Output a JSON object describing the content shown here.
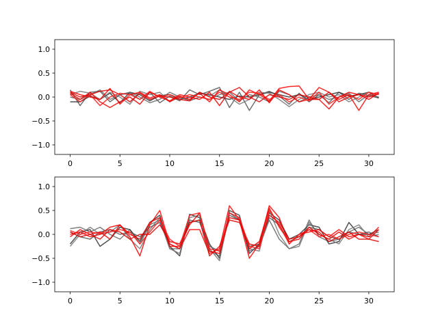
{
  "chart_data": [
    {
      "type": "line",
      "title": "",
      "xlabel": "",
      "ylabel": "",
      "xlim": [
        -1.55,
        32.55
      ],
      "ylim": [
        -1.2,
        1.2
      ],
      "xticks": [
        0,
        5,
        10,
        15,
        20,
        25,
        30
      ],
      "yticks": [
        -1.0,
        -0.5,
        0.0,
        0.5,
        1.0
      ],
      "xtick_labels": [
        "0",
        "5",
        "10",
        "15",
        "20",
        "25",
        "30"
      ],
      "ytick_labels": [
        "−1.0",
        "−0.5",
        "0.0",
        "0.5",
        "1.0"
      ],
      "grid": false,
      "x": [
        0,
        1,
        2,
        3,
        4,
        5,
        6,
        7,
        8,
        9,
        10,
        11,
        12,
        13,
        14,
        15,
        16,
        17,
        18,
        19,
        20,
        21,
        22,
        23,
        24,
        25,
        26,
        27,
        28,
        29,
        30,
        31
      ],
      "series": [
        {
          "color": "#555555",
          "values": [
            0.15,
            -0.18,
            0.1,
            0.12,
            -0.1,
            0.05,
            0.08,
            -0.05,
            0.1,
            -0.12,
            0.02,
            -0.08,
            0.15,
            0.05,
            0.12,
            0.2,
            -0.22,
            0.1,
            -0.28,
            0.05,
            0.12,
            0.02,
            -0.15,
            0.08,
            -0.1,
            0.05,
            -0.12,
            0.1,
            -0.05,
            0.08,
            0.03,
            -0.02
          ]
        },
        {
          "color": "#333333",
          "values": [
            -0.1,
            -0.1,
            0.02,
            -0.05,
            0.08,
            -0.12,
            0.1,
            0.05,
            -0.08,
            0.03,
            0.05,
            -0.05,
            0.0,
            0.08,
            0.05,
            0.0,
            -0.05,
            0.02,
            0.0,
            0.05,
            0.1,
            0.05,
            0.0,
            0.05,
            -0.05,
            0.0,
            0.05,
            0.1,
            0.02,
            0.05,
            0.1,
            -0.02
          ]
        },
        {
          "color": "#777777",
          "values": [
            0.05,
            0.12,
            0.08,
            -0.05,
            0.1,
            0.0,
            -0.15,
            0.12,
            0.05,
            0.1,
            -0.1,
            0.0,
            -0.05,
            0.1,
            0.02,
            0.15,
            0.0,
            -0.15,
            -0.05,
            0.1,
            0.08,
            -0.05,
            -0.2,
            -0.05,
            0.05,
            0.1,
            0.0,
            0.05,
            -0.1,
            0.0,
            0.1,
            0.05
          ]
        },
        {
          "color": "#666666",
          "values": [
            0.0,
            -0.05,
            0.05,
            0.15,
            -0.05,
            0.05,
            0.1,
            0.0,
            -0.12,
            -0.05,
            0.1,
            0.0,
            -0.08,
            0.0,
            -0.05,
            0.05,
            0.1,
            -0.08,
            0.05,
            0.0,
            -0.1,
            0.12,
            0.05,
            -0.1,
            0.0,
            0.05,
            -0.05,
            0.0,
            0.08,
            -0.1,
            0.05,
            0.0
          ]
        },
        {
          "color": "#ff0000",
          "values": [
            0.12,
            0.05,
            0.0,
            -0.05,
            0.18,
            -0.15,
            0.05,
            0.1,
            -0.02,
            0.05,
            -0.1,
            0.02,
            -0.05,
            0.08,
            -0.1,
            0.15,
            0.05,
            -0.1,
            0.15,
            0.05,
            -0.08,
            0.18,
            0.22,
            0.23,
            -0.05,
            0.2,
            0.1,
            -0.05,
            0.05,
            -0.28,
            0.05,
            0.1
          ]
        },
        {
          "color": "#ee0000",
          "values": [
            0.08,
            -0.05,
            0.1,
            -0.1,
            -0.22,
            -0.1,
            0.0,
            -0.15,
            0.1,
            0.0,
            -0.08,
            0.05,
            0.0,
            -0.05,
            0.1,
            -0.18,
            0.12,
            0.0,
            -0.05,
            0.15,
            -0.12,
            0.15,
            0.05,
            -0.1,
            -0.05,
            -0.05,
            -0.25,
            0.0,
            0.1,
            0.05,
            0.0,
            0.08
          ]
        },
        {
          "color": "#dd0000",
          "values": [
            0.1,
            0.0,
            0.05,
            0.12,
            0.15,
            0.05,
            -0.1,
            0.08,
            -0.05,
            0.02,
            0.0,
            -0.05,
            -0.08,
            0.1,
            0.0,
            -0.05,
            0.1,
            0.2,
            0.0,
            -0.1,
            0.05,
            0.0,
            -0.05,
            0.05,
            0.0,
            -0.05,
            0.1,
            -0.1,
            0.0,
            0.05,
            -0.05,
            0.08
          ]
        },
        {
          "color": "#ff1a1a",
          "values": [
            0.05,
            -0.1,
            0.05,
            -0.18,
            0.0,
            0.08,
            0.05,
            -0.05,
            0.12,
            0.0,
            0.05,
            -0.02,
            0.05,
            0.0,
            -0.05,
            0.1,
            0.0,
            -0.05,
            0.1,
            0.08,
            -0.05,
            0.05,
            -0.1,
            0.0,
            -0.08,
            0.1,
            -0.15,
            0.0,
            0.05,
            -0.05,
            0.1,
            0.05
          ]
        }
      ]
    },
    {
      "type": "line",
      "title": "",
      "xlabel": "",
      "ylabel": "",
      "xlim": [
        -1.55,
        32.55
      ],
      "ylim": [
        -1.2,
        1.2
      ],
      "xticks": [
        0,
        5,
        10,
        15,
        20,
        25,
        30
      ],
      "yticks": [
        -1.0,
        -0.5,
        0.0,
        0.5,
        1.0
      ],
      "xtick_labels": [
        "0",
        "5",
        "10",
        "15",
        "20",
        "25",
        "30"
      ],
      "ytick_labels": [
        "−1.0",
        "−0.5",
        "0.0",
        "0.5",
        "1.0"
      ],
      "grid": false,
      "x": [
        0,
        1,
        2,
        3,
        4,
        5,
        6,
        7,
        8,
        9,
        10,
        11,
        12,
        13,
        14,
        15,
        16,
        17,
        18,
        19,
        20,
        21,
        22,
        23,
        24,
        25,
        26,
        27,
        28,
        29,
        30,
        31
      ],
      "series": [
        {
          "color": "#666666",
          "values": [
            0.12,
            0.15,
            0.05,
            0.15,
            0.0,
            -0.1,
            0.1,
            -0.2,
            0.2,
            0.3,
            -0.3,
            -0.3,
            0.25,
            0.3,
            -0.35,
            -0.45,
            0.45,
            0.3,
            -0.35,
            -0.25,
            0.3,
            -0.1,
            -0.3,
            -0.2,
            0.3,
            -0.05,
            -0.15,
            -0.1,
            0.05,
            0.15,
            0.0,
            0.05
          ]
        },
        {
          "color": "#333333",
          "values": [
            -0.2,
            0.05,
            0.1,
            -0.25,
            -0.1,
            0.15,
            0.1,
            -0.15,
            0.25,
            0.4,
            -0.25,
            -0.45,
            0.42,
            0.35,
            -0.2,
            -0.5,
            0.5,
            0.4,
            -0.4,
            -0.2,
            0.45,
            0.3,
            -0.1,
            0.0,
            0.2,
            0.15,
            -0.2,
            -0.15,
            0.25,
            0.0,
            0.0,
            0.1
          ]
        },
        {
          "color": "#777777",
          "values": [
            -0.25,
            0.0,
            0.15,
            0.0,
            0.05,
            0.2,
            -0.1,
            -0.3,
            0.1,
            0.35,
            -0.3,
            -0.4,
            0.35,
            0.4,
            -0.3,
            -0.55,
            0.45,
            0.35,
            -0.3,
            -0.35,
            0.5,
            0.0,
            -0.3,
            -0.25,
            0.25,
            0.0,
            -0.1,
            -0.2,
            0.1,
            0.2,
            -0.05,
            0.0
          ]
        },
        {
          "color": "#555555",
          "values": [
            0.05,
            -0.05,
            -0.1,
            0.05,
            0.1,
            0.0,
            0.05,
            -0.05,
            0.15,
            0.25,
            -0.2,
            -0.3,
            0.3,
            0.25,
            -0.25,
            -0.35,
            0.4,
            0.3,
            -0.25,
            -0.2,
            0.35,
            0.2,
            -0.15,
            -0.05,
            0.15,
            0.1,
            -0.05,
            -0.1,
            0.05,
            0.0,
            0.05,
            -0.05
          ]
        },
        {
          "color": "#ff0000",
          "values": [
            0.0,
            0.05,
            -0.05,
            0.0,
            0.15,
            0.2,
            -0.05,
            -0.45,
            0.2,
            0.5,
            -0.2,
            -0.3,
            0.1,
            0.1,
            -0.4,
            -0.3,
            0.6,
            0.3,
            -0.5,
            -0.2,
            0.6,
            0.35,
            -0.2,
            0.0,
            0.05,
            0.1,
            -0.05,
            0.1,
            -0.05,
            0.0,
            -0.1,
            0.1
          ]
        },
        {
          "color": "#ee0000",
          "values": [
            -0.05,
            0.1,
            0.0,
            0.05,
            -0.1,
            0.2,
            0.0,
            -0.1,
            0.25,
            0.35,
            -0.25,
            -0.25,
            0.2,
            0.45,
            -0.35,
            -0.4,
            0.35,
            0.3,
            -0.3,
            -0.15,
            0.55,
            0.15,
            -0.15,
            -0.1,
            0.15,
            0.0,
            -0.1,
            0.05,
            -0.1,
            0.0,
            -0.05,
            0.15
          ]
        },
        {
          "color": "#dd0000",
          "values": [
            0.05,
            -0.05,
            0.0,
            -0.1,
            0.1,
            0.05,
            -0.1,
            0.0,
            0.0,
            0.2,
            -0.15,
            -0.2,
            0.25,
            0.3,
            -0.45,
            -0.25,
            0.3,
            0.25,
            -0.2,
            -0.25,
            0.4,
            0.25,
            -0.1,
            -0.05,
            0.1,
            0.05,
            -0.15,
            -0.05,
            0.05,
            -0.1,
            -0.1,
            -0.15
          ]
        },
        {
          "color": "#ff1a1a",
          "values": [
            0.08,
            0.0,
            0.05,
            0.02,
            0.05,
            0.1,
            0.05,
            -0.2,
            0.05,
            0.3,
            -0.1,
            -0.25,
            0.4,
            0.45,
            -0.3,
            -0.35,
            0.45,
            0.35,
            -0.25,
            -0.3,
            0.5,
            0.2,
            -0.2,
            0.0,
            0.1,
            -0.05,
            0.0,
            -0.1,
            0.0,
            0.05,
            0.0,
            -0.05
          ]
        }
      ]
    }
  ]
}
